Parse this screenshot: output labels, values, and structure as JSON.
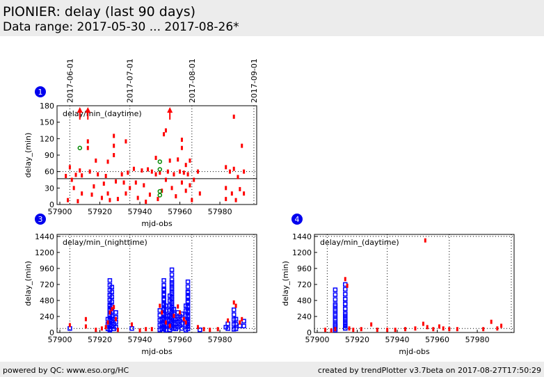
{
  "header": {
    "title": "PIONIER: delay (last 90 days)",
    "range": "Data range: 2017-05-30 ... 2017-08-26*"
  },
  "footer": {
    "left": "powered by QC: www.eso.org/HC",
    "right": "created by trendPlotter v3.7beta on 2017-08-27T17:50:29"
  },
  "colors": {
    "red": "#ff0000",
    "blue": "#0000ff",
    "green": "#008800",
    "badge": "#0000ee"
  },
  "chart_data": [
    {
      "id": "1",
      "type": "scatter",
      "label": "delay/min_(daytime)",
      "xlabel": "mjd-obs",
      "ylabel": "delay_(min)",
      "xlim": [
        57898.6,
        57998.4
      ],
      "ylim": [
        0,
        180
      ],
      "xticks": [
        57900,
        57920,
        57940,
        57960,
        57980
      ],
      "yticks": [
        0,
        30,
        60,
        90,
        120,
        150,
        180
      ],
      "date_ticks": [
        {
          "mjd": 57905,
          "label": "2017-06-01"
        },
        {
          "mjd": 57935,
          "label": "2017-07-01"
        },
        {
          "mjd": 57966,
          "label": "2017-08-01"
        },
        {
          "mjd": 57997,
          "label": "2017-09-01"
        }
      ],
      "ref_lines": {
        "dotted": 60,
        "solid": 47
      },
      "red": [
        [
          57903,
          52
        ],
        [
          57904,
          8
        ],
        [
          57905,
          68
        ],
        [
          57906,
          45
        ],
        [
          57907,
          30
        ],
        [
          57908,
          54
        ],
        [
          57909,
          6
        ],
        [
          57910,
          62
        ],
        [
          57911,
          20
        ],
        [
          57911,
          53
        ],
        [
          57914,
          115
        ],
        [
          57914,
          103
        ],
        [
          57915,
          60
        ],
        [
          57916,
          18
        ],
        [
          57917,
          33
        ],
        [
          57918,
          80
        ],
        [
          57919,
          55
        ],
        [
          57921,
          12
        ],
        [
          57922,
          38
        ],
        [
          57923,
          52
        ],
        [
          57924,
          78
        ],
        [
          57924,
          20
        ],
        [
          57925,
          8
        ],
        [
          57927,
          125
        ],
        [
          57927,
          107
        ],
        [
          57927,
          90
        ],
        [
          57928,
          42
        ],
        [
          57929,
          10
        ],
        [
          57931,
          55
        ],
        [
          57932,
          40
        ],
        [
          57933,
          115
        ],
        [
          57933,
          20
        ],
        [
          57934,
          58
        ],
        [
          57935,
          30
        ],
        [
          57937,
          65
        ],
        [
          57938,
          40
        ],
        [
          57939,
          12
        ],
        [
          57941,
          62
        ],
        [
          57942,
          35
        ],
        [
          57943,
          5
        ],
        [
          57944,
          64
        ],
        [
          57945,
          18
        ],
        [
          57946,
          60
        ],
        [
          57948,
          85
        ],
        [
          57948,
          55
        ],
        [
          57949,
          10
        ],
        [
          57950,
          58
        ],
        [
          57951,
          25
        ],
        [
          57952,
          128
        ],
        [
          57953,
          135
        ],
        [
          57953,
          45
        ],
        [
          57954,
          60
        ],
        [
          57955,
          80
        ],
        [
          57956,
          30
        ],
        [
          57957,
          55
        ],
        [
          57958,
          15
        ],
        [
          57959,
          82
        ],
        [
          57960,
          60
        ],
        [
          57961,
          118
        ],
        [
          57961,
          103
        ],
        [
          57961,
          40
        ],
        [
          57962,
          58
        ],
        [
          57963,
          72
        ],
        [
          57963,
          25
        ],
        [
          57964,
          55
        ],
        [
          57965,
          80
        ],
        [
          57965,
          35
        ],
        [
          57966,
          8
        ],
        [
          57967,
          45
        ],
        [
          57969,
          60
        ],
        [
          57970,
          20
        ],
        [
          57983,
          68
        ],
        [
          57983,
          30
        ],
        [
          57983,
          10
        ],
        [
          57985,
          60
        ],
        [
          57986,
          20
        ],
        [
          57987,
          160
        ],
        [
          57987,
          65
        ],
        [
          57988,
          8
        ],
        [
          57989,
          50
        ],
        [
          57990,
          28
        ],
        [
          57991,
          107
        ],
        [
          57992,
          60
        ],
        [
          57992,
          20
        ]
      ],
      "green": [
        [
          57910,
          103
        ],
        [
          57950,
          78
        ],
        [
          57950,
          64
        ],
        [
          57950,
          24
        ],
        [
          57950,
          17
        ]
      ],
      "arrows": [
        57910,
        57914,
        57955
      ]
    },
    {
      "id": "3",
      "type": "scatter",
      "label": "delay/min_(nighttime)",
      "xlabel": "mjd-obs",
      "ylabel": "delay_(min)",
      "xlim": [
        57898.6,
        57998.4
      ],
      "ylim": [
        0,
        1470
      ],
      "xticks": [
        57900,
        57920,
        57940,
        57960,
        57980
      ],
      "yticks": [
        0,
        240,
        480,
        720,
        960,
        1200,
        1440
      ],
      "ref_lines": {
        "dotted": [
          60,
          1440
        ]
      },
      "red": [
        [
          57905,
          110
        ],
        [
          57913,
          200
        ],
        [
          57913,
          90
        ],
        [
          57918,
          40
        ],
        [
          57921,
          60
        ],
        [
          57923,
          80
        ],
        [
          57924,
          150
        ],
        [
          57925,
          300
        ],
        [
          57926,
          350
        ],
        [
          57927,
          380
        ],
        [
          57928,
          200
        ],
        [
          57929,
          40
        ],
        [
          57936,
          120
        ],
        [
          57940,
          30
        ],
        [
          57943,
          50
        ],
        [
          57946,
          50
        ],
        [
          57950,
          400
        ],
        [
          57951,
          300
        ],
        [
          57953,
          150
        ],
        [
          57955,
          100
        ],
        [
          57957,
          250
        ],
        [
          57959,
          390
        ],
        [
          57960,
          300
        ],
        [
          57962,
          200
        ],
        [
          57963,
          150
        ],
        [
          57969,
          80
        ],
        [
          57972,
          50
        ],
        [
          57975,
          40
        ],
        [
          57979,
          50
        ],
        [
          57984,
          180
        ],
        [
          57987,
          450
        ],
        [
          57988,
          400
        ],
        [
          57990,
          150
        ],
        [
          57991,
          200
        ]
      ],
      "blue": [
        [
          57905,
          60
        ],
        [
          57905,
          30
        ],
        [
          57924,
          200
        ],
        [
          57925,
          400
        ],
        [
          57925,
          560
        ],
        [
          57925,
          780
        ],
        [
          57926,
          680
        ],
        [
          57927,
          200
        ],
        [
          57928,
          300
        ],
        [
          57936,
          60
        ],
        [
          57950,
          330
        ],
        [
          57951,
          200
        ],
        [
          57952,
          650
        ],
        [
          57952,
          780
        ],
        [
          57953,
          400
        ],
        [
          57954,
          250
        ],
        [
          57955,
          550
        ],
        [
          57956,
          940
        ],
        [
          57956,
          750
        ],
        [
          57957,
          350
        ],
        [
          57958,
          200
        ],
        [
          57959,
          300
        ],
        [
          57960,
          250
        ],
        [
          57961,
          280
        ],
        [
          57963,
          400
        ],
        [
          57964,
          760
        ],
        [
          57964,
          600
        ],
        [
          57964,
          200
        ],
        [
          57970,
          40
        ],
        [
          57976,
          30
        ],
        [
          57980,
          20
        ],
        [
          57983,
          80
        ],
        [
          57984,
          130
        ],
        [
          57987,
          340
        ],
        [
          57988,
          200
        ],
        [
          57990,
          100
        ],
        [
          57992,
          170
        ]
      ]
    },
    {
      "id": "4",
      "type": "scatter",
      "label": "delay/min_(daytime)",
      "xlabel": "mjd-obs",
      "ylabel": "delay_(min)",
      "xlim": [
        57898.6,
        57998.4
      ],
      "ylim": [
        0,
        1470
      ],
      "xticks": [
        57900,
        57920,
        57940,
        57960,
        57980
      ],
      "yticks": [
        0,
        240,
        480,
        720,
        960,
        1200,
        1440
      ],
      "ref_lines": {
        "dotted": [
          60,
          1440
        ]
      },
      "red": [
        [
          57904,
          40
        ],
        [
          57907,
          30
        ],
        [
          57909,
          50
        ],
        [
          57914,
          800
        ],
        [
          57915,
          700
        ],
        [
          57916,
          60
        ],
        [
          57918,
          40
        ],
        [
          57922,
          50
        ],
        [
          57927,
          120
        ],
        [
          57930,
          40
        ],
        [
          57935,
          40
        ],
        [
          57939,
          40
        ],
        [
          57944,
          50
        ],
        [
          57949,
          60
        ],
        [
          57953,
          130
        ],
        [
          57954,
          1380
        ],
        [
          57955,
          80
        ],
        [
          57958,
          50
        ],
        [
          57961,
          90
        ],
        [
          57963,
          60
        ],
        [
          57966,
          50
        ],
        [
          57970,
          50
        ],
        [
          57983,
          50
        ],
        [
          57987,
          160
        ],
        [
          57990,
          60
        ],
        [
          57992,
          100
        ]
      ],
      "blue": [
        [
          57909,
          640
        ],
        [
          57909,
          400
        ],
        [
          57909,
          100
        ],
        [
          57914,
          720
        ],
        [
          57914,
          500
        ],
        [
          57914,
          250
        ],
        [
          57914,
          100
        ]
      ]
    }
  ]
}
